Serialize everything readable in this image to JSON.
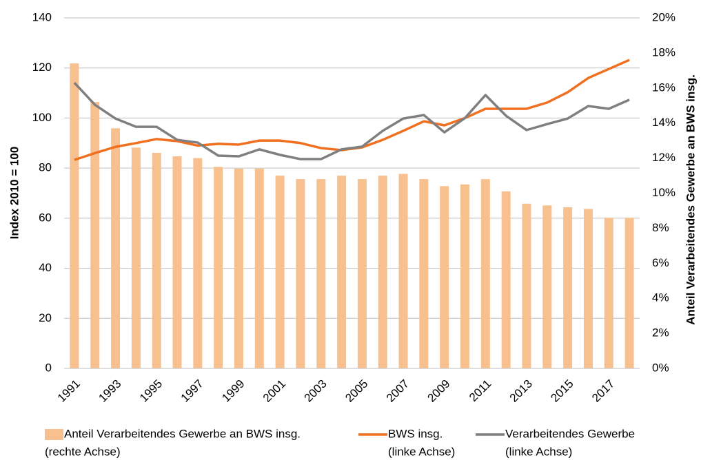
{
  "chart_data": {
    "type": "bar",
    "ylabel": "Index 2010 = 100",
    "y2label": "Anteil Verarbeitendes Gewerbe an BWS insg.",
    "categories": [
      "1991",
      null,
      "1993",
      null,
      "1995",
      null,
      "1997",
      null,
      "1999",
      null,
      "2001",
      null,
      "2003",
      null,
      "2005",
      null,
      "2007",
      null,
      "2009",
      null,
      "2011",
      null,
      "2013",
      null,
      "2015",
      null,
      "2017",
      null
    ],
    "ylim": [
      0,
      140
    ],
    "yticks": [
      0,
      20,
      40,
      60,
      80,
      100,
      120,
      140
    ],
    "y2lim": [
      0,
      20
    ],
    "y2ticks": [
      {
        "value": 0,
        "label": "0%"
      },
      {
        "value": 2,
        "label": "2%"
      },
      {
        "value": 4,
        "label": "4%"
      },
      {
        "value": 6,
        "label": "6%"
      },
      {
        "value": 8,
        "label": "8%"
      },
      {
        "value": 10,
        "label": "10%"
      },
      {
        "value": 12,
        "label": "12%"
      },
      {
        "value": 14,
        "label": "14%"
      },
      {
        "value": 16,
        "label": "16%"
      },
      {
        "value": 18,
        "label": "18%"
      },
      {
        "value": 20,
        "label": "20%"
      }
    ],
    "grid": true,
    "series": [
      {
        "name": "Anteil Verarbeitendes Gewerbe an BWS insg.",
        "legend_note": "(rechte Achse)",
        "type": "bar",
        "axis": "y2",
        "color": "#f9c08f",
        "values": [
          17.4,
          15.2,
          13.7,
          12.6,
          12.3,
          12.1,
          12.0,
          11.5,
          11.4,
          11.4,
          11.0,
          10.8,
          10.8,
          11.0,
          10.8,
          11.0,
          11.1,
          10.8,
          10.4,
          10.5,
          10.8,
          10.1,
          9.4,
          9.3,
          9.2,
          9.1,
          8.6,
          8.6
        ]
      },
      {
        "name": "BWS insg.",
        "legend_note": "(linke Achse)",
        "type": "line",
        "color": "#f07020",
        "values": [
          83.3,
          86,
          88.5,
          90,
          91.6,
          90.8,
          89,
          89.7,
          89.4,
          91,
          91,
          90,
          88,
          87.2,
          88.3,
          91.3,
          94.9,
          98.7,
          97.1,
          100,
          103.7,
          103.7,
          103.7,
          106.2,
          110.3,
          116,
          119.6,
          123.2
        ]
      },
      {
        "name": "Verarbeitendes Gewerbe",
        "legend_note": "(linke Achse)",
        "type": "line",
        "color": "#7f7f7f",
        "values": [
          114.1,
          105.3,
          99.8,
          96.5,
          96.5,
          91.3,
          90.2,
          85,
          84.7,
          87.5,
          85.3,
          83.6,
          83.6,
          87.5,
          88.6,
          94.9,
          99.8,
          101.2,
          94.3,
          100,
          109.2,
          100.9,
          95.2,
          97.6,
          99.8,
          104.8,
          103.7,
          107.3
        ]
      }
    ]
  }
}
